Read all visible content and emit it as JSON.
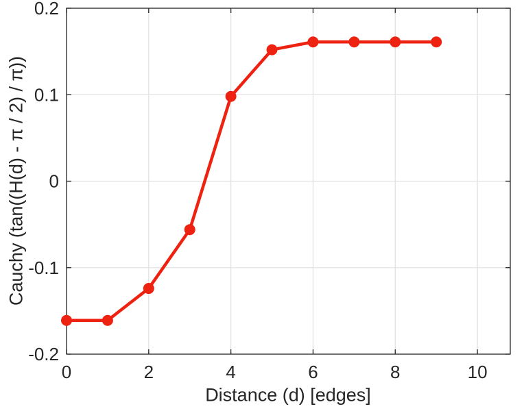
{
  "chart_data": {
    "type": "line",
    "x": [
      0,
      1,
      2,
      3,
      4,
      5,
      6,
      7,
      8,
      9
    ],
    "y": [
      -0.161,
      -0.161,
      -0.124,
      -0.056,
      0.098,
      0.152,
      0.161,
      0.161,
      0.161,
      0.161
    ],
    "title": "",
    "xlabel": "Distance (d) [edges]",
    "ylabel": "Cauchy (tan((H(d) -  π / 2) /  π))",
    "xlim": [
      0,
      10.8
    ],
    "ylim": [
      -0.2,
      0.2
    ],
    "xticks": {
      "values": [
        0,
        2,
        4,
        6,
        8,
        10
      ],
      "labels": [
        "0",
        "2",
        "4",
        "6",
        "8",
        "10"
      ]
    },
    "yticks": {
      "values": [
        -0.2,
        -0.1,
        0,
        0.1,
        0.2
      ],
      "labels": [
        "-0.2",
        "-0.1",
        "0",
        "0.1",
        "0.2"
      ]
    },
    "grid": true,
    "legend": "none",
    "line_color": "#ee2211",
    "marker": "o",
    "axis_color": "#262626",
    "grid_color": "#e2e2e2",
    "background": "#ffffff"
  }
}
